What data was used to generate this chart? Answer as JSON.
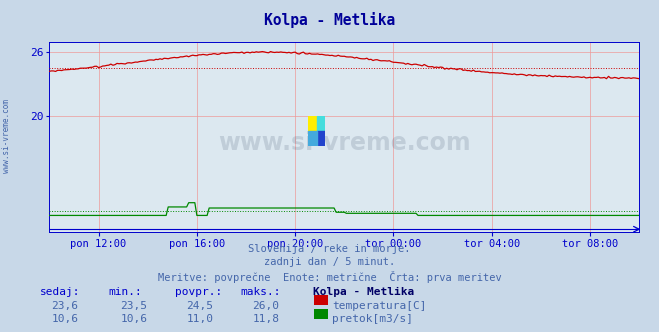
{
  "title": "Kolpa - Metlika",
  "title_color": "#000099",
  "bg_color": "#c8d8e8",
  "plot_bg_color": "#dce8f0",
  "grid_color": "#ee9999",
  "axis_color": "#0000cc",
  "tick_color": "#0000cc",
  "figsize": [
    6.59,
    3.32
  ],
  "dpi": 100,
  "xlim_min": 0,
  "xlim_max": 288,
  "ylim_min": 14.0,
  "ylim_max": 28.0,
  "yticks": [
    20,
    26
  ],
  "ytick_labels": [
    "20",
    "26"
  ],
  "xtick_positions": [
    24,
    72,
    120,
    168,
    216,
    264
  ],
  "xtick_labels": [
    "pon 12:00",
    "pon 16:00",
    "pon 20:00",
    "tor 00:00",
    "tor 04:00",
    "tor 08:00"
  ],
  "subtitle_lines": [
    "Slovenija / reke in morje.",
    "zadnji dan / 5 minut.",
    "Meritve: povprečne  Enote: metrične  Črta: prva meritev"
  ],
  "table_headers": [
    "sedaj:",
    "min.:",
    "povpr.:",
    "maks.:",
    "Kolpa - Metlika"
  ],
  "table_row1_vals": [
    "23,6",
    "23,5",
    "24,5",
    "26,0"
  ],
  "table_row2_vals": [
    "10,6",
    "10,6",
    "11,0",
    "11,8"
  ],
  "legend_temp": "temperatura[C]",
  "legend_flow": "pretok[m3/s]",
  "temp_color": "#cc0000",
  "flow_color": "#008800",
  "avg_temp": 24.5,
  "avg_flow_scaled": 14.55,
  "watermark_text": "www.si-vreme.com",
  "left_text": "www.si-vreme.com",
  "subtitle_color": "#4466aa",
  "table_header_color": "#0000cc",
  "table_val_color": "#4466aa",
  "table_title_color": "#000066"
}
